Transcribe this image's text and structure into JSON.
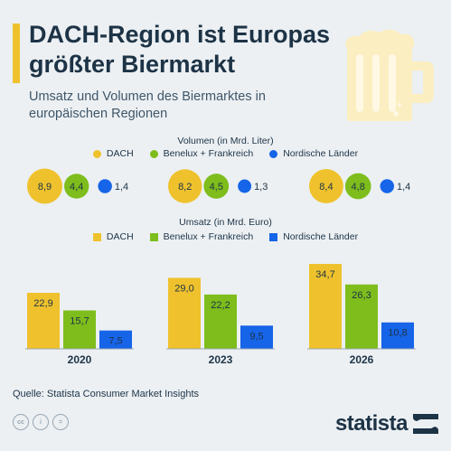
{
  "header": {
    "title": "DACH-Region ist Europas größter Biermarkt",
    "subtitle": "Umsatz und Volumen des Biermarktes in europäischen Regionen"
  },
  "icons": {
    "hero": "beer-mug-icon",
    "license": [
      "cc-icon",
      "person-icon",
      "equals-icon"
    ],
    "brand": "statista-logo-icon"
  },
  "colors": {
    "dach": "#efc22d",
    "benelux": "#7ebd1c",
    "nordic": "#1664e8",
    "text": "#1d3346",
    "background": "#ecf0f3"
  },
  "volume": {
    "title": "Volumen (in Mrd. Liter)",
    "legend": [
      "DACH",
      "Benelux + Frankreich",
      "Nordische Länder"
    ]
  },
  "revenue": {
    "title": "Umsatz (in Mrd. Euro)",
    "legend": [
      "DACH",
      "Benelux + Frankreich",
      "Nordische Länder"
    ]
  },
  "chart_data": [
    {
      "type": "bubble",
      "title": "Volumen (in Mrd. Liter)",
      "categories": [
        "2020",
        "2023",
        "2026"
      ],
      "series": [
        {
          "name": "DACH",
          "values": [
            8.9,
            8.2,
            8.4
          ],
          "labels": [
            "8,9",
            "8,2",
            "8,4"
          ]
        },
        {
          "name": "Benelux + Frankreich",
          "values": [
            4.4,
            4.5,
            4.8
          ],
          "labels": [
            "4,4",
            "4,5",
            "4,8"
          ]
        },
        {
          "name": "Nordische Länder",
          "values": [
            1.4,
            1.3,
            1.4
          ],
          "labels": [
            "1,4",
            "1,3",
            "1,4"
          ]
        }
      ]
    },
    {
      "type": "bar",
      "title": "Umsatz (in Mrd. Euro)",
      "categories": [
        "2020",
        "2023",
        "2026"
      ],
      "series": [
        {
          "name": "DACH",
          "values": [
            22.9,
            29.0,
            34.7
          ],
          "labels": [
            "22,9",
            "29,0",
            "34,7"
          ]
        },
        {
          "name": "Benelux + Frankreich",
          "values": [
            15.7,
            22.2,
            26.3
          ],
          "labels": [
            "15,7",
            "22,2",
            "26,3"
          ]
        },
        {
          "name": "Nordische Länder",
          "values": [
            7.5,
            9.5,
            10.8
          ],
          "labels": [
            "7,5",
            "9,5",
            "10,8"
          ]
        }
      ],
      "ylim": [
        0,
        34.7
      ]
    }
  ],
  "footer": {
    "source": "Quelle: Statista Consumer Market Insights",
    "brand": "statista"
  }
}
